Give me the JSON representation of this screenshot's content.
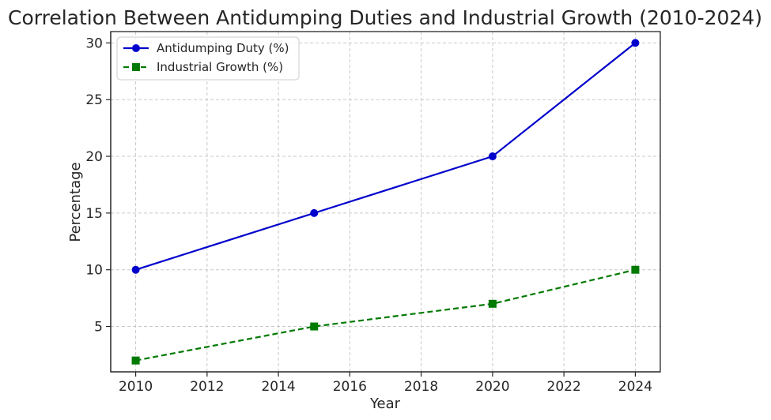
{
  "chart_data": {
    "type": "line",
    "title": "Correlation Between Antidumping Duties and Industrial Growth (2010-2024)",
    "xlabel": "Year",
    "ylabel": "Percentage",
    "xlim": [
      2009.3,
      2024.7
    ],
    "ylim": [
      1.0,
      31.0
    ],
    "xticks": [
      2010,
      2012,
      2014,
      2016,
      2018,
      2020,
      2022,
      2024
    ],
    "yticks": [
      5,
      10,
      15,
      20,
      25,
      30
    ],
    "grid": true,
    "legend_position": "top-left",
    "series": [
      {
        "name": "Antidumping Duty (%)",
        "color": "#0000cc",
        "line_style": "solid",
        "marker": "circle",
        "x": [
          2010,
          2015,
          2020,
          2024
        ],
        "y": [
          10,
          15,
          20,
          30
        ]
      },
      {
        "name": "Industrial Growth (%)",
        "color": "#007a00",
        "line_style": "dashed",
        "marker": "square",
        "x": [
          2010,
          2015,
          2020,
          2024
        ],
        "y": [
          2,
          5,
          7,
          10
        ]
      }
    ]
  }
}
